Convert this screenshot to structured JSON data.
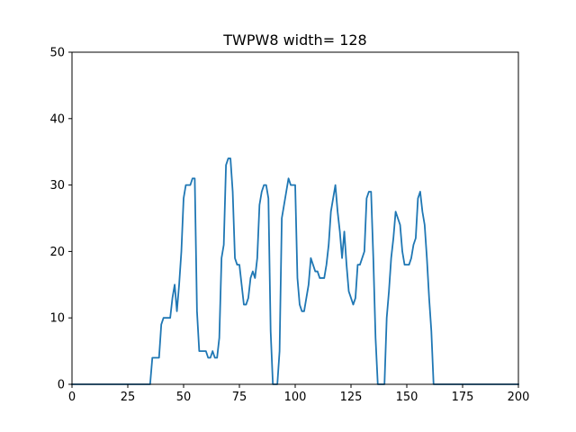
{
  "chart_data": {
    "type": "line",
    "title": "TWPW8 width= 128",
    "xlabel": "",
    "ylabel": "",
    "xlim": [
      0,
      200
    ],
    "ylim": [
      0,
      50
    ],
    "xticks": [
      0,
      25,
      50,
      75,
      100,
      125,
      150,
      175,
      200
    ],
    "yticks": [
      0,
      10,
      20,
      30,
      40,
      50
    ],
    "grid": false,
    "colors": {
      "line": "#1f77b4",
      "axes": "#000000"
    },
    "series": [
      {
        "name": "",
        "x": [
          0,
          35,
          36,
          38,
          39,
          40,
          41,
          44,
          45,
          46,
          47,
          48,
          49,
          50,
          51,
          53,
          54,
          55,
          56,
          57,
          59,
          60,
          61,
          62,
          63,
          64,
          65,
          66,
          67,
          68,
          69,
          70,
          71,
          72,
          73,
          74,
          75,
          76,
          77,
          78,
          79,
          80,
          81,
          82,
          83,
          84,
          85,
          86,
          87,
          88,
          89,
          90,
          91,
          92,
          93,
          94,
          95,
          96,
          97,
          98,
          99,
          100,
          101,
          102,
          103,
          104,
          105,
          106,
          107,
          108,
          109,
          110,
          111,
          112,
          113,
          114,
          115,
          116,
          117,
          118,
          119,
          120,
          121,
          122,
          123,
          124,
          125,
          126,
          127,
          128,
          129,
          130,
          131,
          132,
          133,
          134,
          135,
          136,
          137,
          138,
          140,
          141,
          142,
          143,
          144,
          145,
          146,
          147,
          148,
          149,
          150,
          151,
          152,
          153,
          154,
          155,
          156,
          157,
          158,
          159,
          160,
          161,
          162,
          163,
          200
        ],
        "values": [
          0,
          0,
          4,
          4,
          4,
          9,
          10,
          10,
          13,
          15,
          11,
          15,
          20,
          28,
          30,
          30,
          31,
          31,
          11,
          5,
          5,
          5,
          4,
          4,
          5,
          4,
          4,
          7,
          19,
          21,
          33,
          34,
          34,
          29,
          19,
          18,
          18,
          15,
          12,
          12,
          13,
          16,
          17,
          16,
          19,
          27,
          29,
          30,
          30,
          28,
          8,
          0,
          0,
          0,
          5,
          25,
          27,
          29,
          31,
          30,
          30,
          30,
          16,
          12,
          11,
          11,
          13,
          15,
          19,
          18,
          17,
          17,
          16,
          16,
          16,
          18,
          21,
          26,
          28,
          30,
          26,
          23,
          19,
          23,
          18,
          14,
          13,
          12,
          13,
          18,
          18,
          19,
          20,
          28,
          29,
          29,
          19,
          7,
          0,
          0,
          0,
          10,
          14,
          19,
          22,
          26,
          25,
          24,
          20,
          18,
          18,
          18,
          19,
          21,
          22,
          28,
          29,
          26,
          24,
          19,
          13,
          8,
          0,
          0,
          0
        ]
      }
    ]
  }
}
